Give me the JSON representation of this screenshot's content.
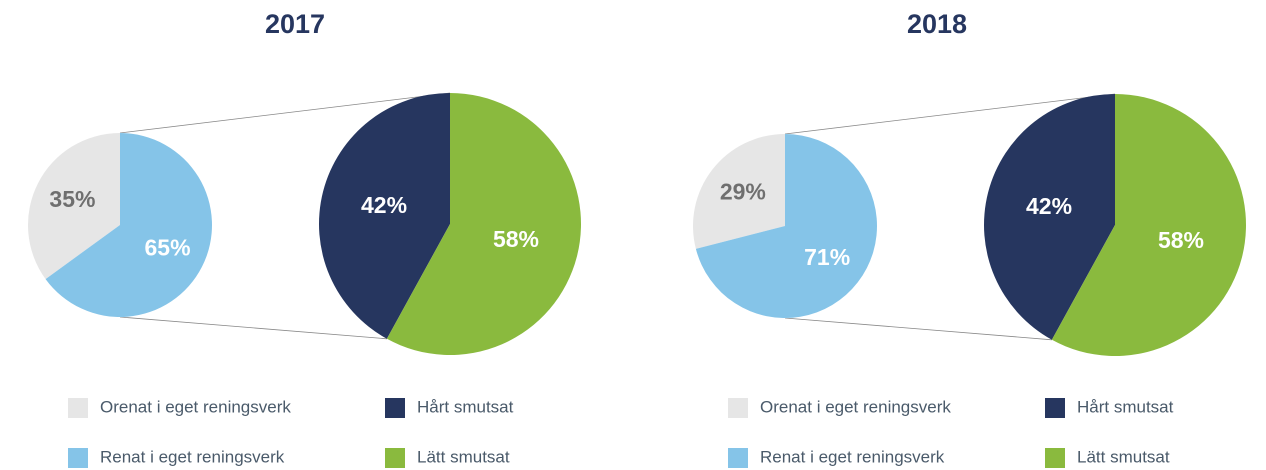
{
  "chart_data": [
    {
      "type": "pie",
      "title": "2017",
      "categories": [
        "Orenat i eget reningsverk",
        "Renat i eget reningsverk"
      ],
      "values": [
        35,
        65
      ],
      "value_labels": [
        "35%",
        "65%"
      ],
      "colors": [
        "#e6e6e6",
        "#85c4e8"
      ],
      "sub_pie": {
        "categories": [
          "Hårt smutsat",
          "Lätt smutsat"
        ],
        "values": [
          42,
          58
        ],
        "value_labels": [
          "42%",
          "58%"
        ],
        "colors": [
          "#26365f",
          "#8aba3e"
        ]
      }
    },
    {
      "type": "pie",
      "title": "2018",
      "categories": [
        "Orenat i eget reningsverk",
        "Renat i eget reningsverk"
      ],
      "values": [
        29,
        71
      ],
      "value_labels": [
        "29%",
        "71%"
      ],
      "colors": [
        "#e6e6e6",
        "#85c4e8"
      ],
      "sub_pie": {
        "categories": [
          "Hårt smutsat",
          "Lätt smutsat"
        ],
        "values": [
          42,
          58
        ],
        "value_labels": [
          "42%",
          "58%"
        ],
        "colors": [
          "#26365f",
          "#8aba3e"
        ]
      }
    }
  ]
}
